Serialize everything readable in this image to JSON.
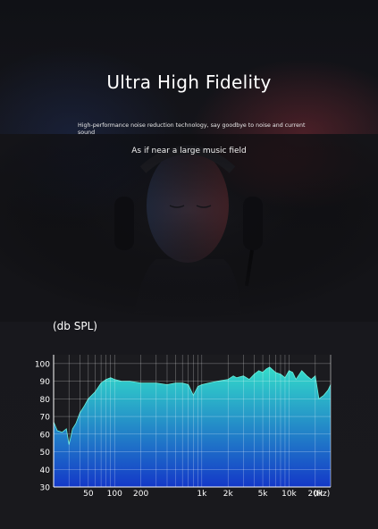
{
  "header": {
    "title": "Ultra High Fidelity",
    "subtitle": "High-performance noise reduction technology, say goodbye to noise and current sound",
    "tagline": "As if near a large music field"
  },
  "chart_data": {
    "type": "area",
    "ylabel": "(db SPL)",
    "xlabel": "(Hz)",
    "x_scale": "log",
    "xlim": [
      20,
      30000
    ],
    "ylim": [
      30,
      105
    ],
    "y_ticks": [
      100,
      90,
      80,
      70,
      60,
      50,
      40,
      30
    ],
    "x_ticks": [
      {
        "value": 50,
        "label": "50"
      },
      {
        "value": 100,
        "label": "100"
      },
      {
        "value": 200,
        "label": "200"
      },
      {
        "value": 1000,
        "label": "1k"
      },
      {
        "value": 2000,
        "label": "2k"
      },
      {
        "value": 5000,
        "label": "5k"
      },
      {
        "value": 10000,
        "label": "10k"
      },
      {
        "value": 20000,
        "label": "20k"
      }
    ],
    "grid": true,
    "colors": {
      "fill_top": "#33dcc9",
      "fill_bottom": "#1438c8",
      "outline": "#66f0dc"
    },
    "series": [
      {
        "x": [
          20,
          22,
          25,
          28,
          30,
          33,
          36,
          40,
          45,
          50,
          60,
          70,
          80,
          90,
          100,
          120,
          150,
          200,
          250,
          300,
          400,
          500,
          600,
          700,
          800,
          900,
          1000,
          1200,
          1500,
          2000,
          2300,
          2500,
          3000,
          3500,
          4000,
          4500,
          5000,
          5500,
          6000,
          7000,
          8000,
          9000,
          10000,
          11000,
          12000,
          14000,
          16000,
          18000,
          20000,
          22000,
          25000,
          28000,
          30000
        ],
        "y": [
          67,
          62,
          61,
          63,
          54,
          63,
          66,
          72,
          76,
          80,
          84,
          89,
          91,
          92,
          91,
          90,
          90,
          89,
          89,
          89,
          88,
          89,
          89,
          88,
          82,
          87,
          88,
          89,
          90,
          91,
          93,
          92,
          93,
          91,
          94,
          96,
          95,
          97,
          98,
          95,
          94,
          92,
          96,
          95,
          91,
          96,
          93,
          91,
          93,
          80,
          82,
          85,
          88
        ]
      }
    ]
  }
}
